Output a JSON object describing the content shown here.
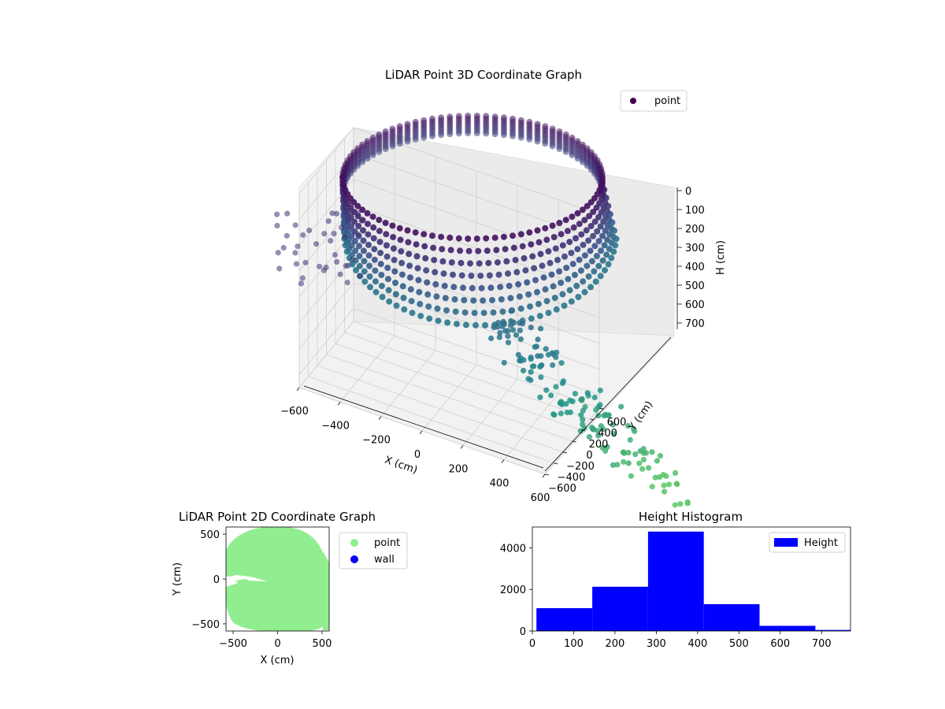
{
  "chart_data": [
    {
      "type": "scatter",
      "title": "LiDAR Point 3D Coordinate Graph",
      "xlabel": "X (cm)",
      "ylabel": "Y (cm)",
      "zlabel": "H (cm)",
      "xlim": [
        -600,
        600
      ],
      "ylim": [
        -600,
        600
      ],
      "zlim": [
        0,
        750
      ],
      "z_inverted": true,
      "x_ticks": [
        "−600",
        "−400",
        "−200",
        "0",
        "200",
        "400",
        "600"
      ],
      "y_ticks": [
        "−600",
        "−400",
        "−200",
        "0",
        "200",
        "400",
        "600"
      ],
      "z_ticks": [
        "0",
        "100",
        "200",
        "300",
        "400",
        "500",
        "600",
        "700"
      ],
      "grid": true,
      "legend": {
        "placement": "upper right",
        "entries": [
          "point"
        ]
      },
      "colormap": "viridis",
      "series_color": "#440154",
      "shape": "ring of points, radius ~580 cm, heights 0–750 cm, spillover toward +X/−Y"
    },
    {
      "type": "scatter",
      "title": "LiDAR Point 2D Coordinate Graph",
      "xlabel": "X (cm)",
      "ylabel": "Y (cm)",
      "xlim": [
        -580,
        580
      ],
      "ylim": [
        -580,
        580
      ],
      "x_ticks": [
        "−500",
        "0",
        "500"
      ],
      "y_ticks": [
        "−500",
        "0",
        "500"
      ],
      "x_tick_values": [
        -500,
        0,
        500
      ],
      "y_tick_values": [
        -500,
        0,
        500
      ],
      "legend": {
        "placement": "outside right",
        "entries": [
          "point",
          "wall"
        ]
      },
      "series": [
        {
          "name": "point",
          "color": "#90ee90"
        },
        {
          "name": "wall",
          "color": "#0000ff"
        }
      ]
    },
    {
      "type": "bar",
      "title": "Height Histogram",
      "xlim": [
        0,
        770
      ],
      "ylim": [
        0,
        5000
      ],
      "x_ticks": [
        "0",
        "100",
        "200",
        "300",
        "400",
        "500",
        "600",
        "700"
      ],
      "x_tick_values": [
        0,
        100,
        200,
        300,
        400,
        500,
        600,
        700
      ],
      "y_ticks": [
        "0",
        "2000",
        "4000"
      ],
      "y_tick_values": [
        0,
        2000,
        4000
      ],
      "bin_edges": [
        10,
        145,
        280,
        415,
        550,
        685,
        770
      ],
      "values": [
        1100,
        2130,
        4780,
        1290,
        250,
        50
      ],
      "legend": {
        "placement": "upper right",
        "entries": [
          "Height"
        ]
      },
      "color": "#0000ff"
    }
  ]
}
